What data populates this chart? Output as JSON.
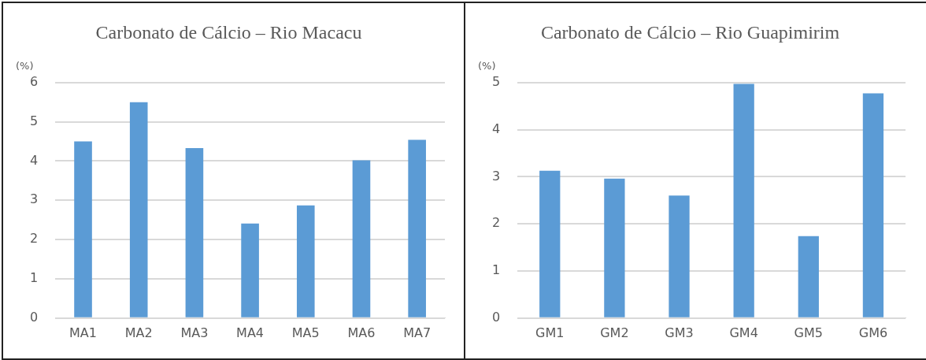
{
  "chart_data": [
    {
      "type": "bar",
      "title": "Carbonato de Cálcio – Rio Macacu",
      "ylabel": "(%)",
      "categories": [
        "MA1",
        "MA2",
        "MA3",
        "MA4",
        "MA5",
        "MA6",
        "MA7"
      ],
      "values": [
        4.5,
        5.5,
        4.33,
        2.41,
        2.87,
        4.02,
        4.54
      ],
      "color": "#5b9bd5",
      "ylim": [
        0,
        6
      ],
      "yticks": [
        0,
        1,
        2,
        3,
        4,
        5,
        6
      ],
      "grid": "y"
    },
    {
      "type": "bar",
      "title": "Carbonato de Cálcio – Rio Guapimirim",
      "ylabel": "(%)",
      "categories": [
        "GM1",
        "GM2",
        "GM3",
        "GM4",
        "GM5",
        "GM6"
      ],
      "values": [
        3.13,
        2.96,
        2.6,
        4.97,
        1.74,
        4.77
      ],
      "color": "#5b9bd5",
      "ylim": [
        0,
        5
      ],
      "yticks": [
        0,
        1,
        2,
        3,
        4,
        5
      ],
      "grid": "y"
    }
  ]
}
